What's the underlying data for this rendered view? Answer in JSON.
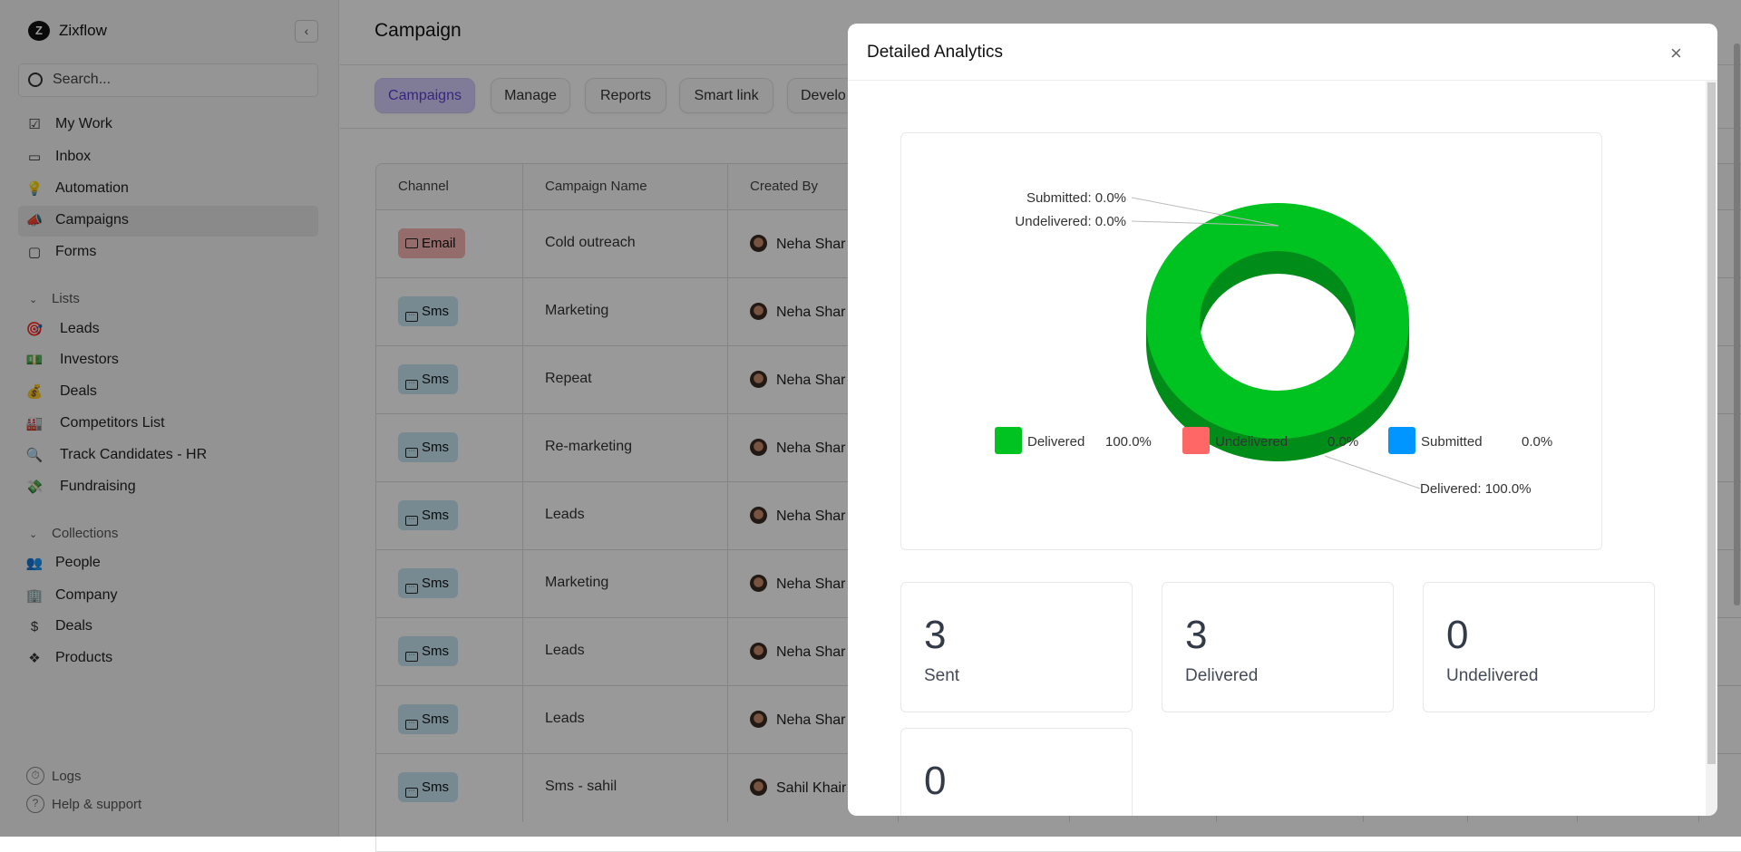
{
  "app": {
    "brand": "Zixflow",
    "logo_letter": "Z"
  },
  "sidebar": {
    "search_placeholder": "Search...",
    "nav": [
      {
        "label": "My Work",
        "icon": "checkbox-icon"
      },
      {
        "label": "Inbox",
        "icon": "inbox-icon"
      },
      {
        "label": "Automation",
        "icon": "lightbulb-icon"
      },
      {
        "label": "Campaigns",
        "icon": "megaphone-icon",
        "active": true
      },
      {
        "label": "Forms",
        "icon": "form-icon"
      }
    ],
    "lists_title": "Lists",
    "lists": [
      {
        "label": "Leads",
        "icon": "🎯"
      },
      {
        "label": "Investors",
        "icon": "💵"
      },
      {
        "label": "Deals",
        "icon": "💰"
      },
      {
        "label": "Competitors List",
        "icon": "🏭"
      },
      {
        "label": "Track Candidates - HR",
        "icon": "🔍"
      },
      {
        "label": "Fundraising",
        "icon": "💸"
      }
    ],
    "collections_title": "Collections",
    "collections": [
      {
        "label": "People",
        "icon": "👥"
      },
      {
        "label": "Company",
        "icon": "🏢"
      },
      {
        "label": "Deals",
        "icon": "$"
      },
      {
        "label": "Products",
        "icon": "❖"
      }
    ],
    "footer": [
      {
        "label": "Logs",
        "icon": "logs-icon"
      },
      {
        "label": "Help & support",
        "icon": "?"
      }
    ]
  },
  "main": {
    "title": "Campaign",
    "tabs": [
      {
        "label": "Campaigns",
        "active": true
      },
      {
        "label": "Manage"
      },
      {
        "label": "Reports"
      },
      {
        "label": "Smart link"
      },
      {
        "label": "Develo"
      }
    ],
    "table": {
      "columns": [
        "Channel",
        "Campaign Name",
        "Created By"
      ],
      "rows": [
        {
          "channel": "Email",
          "name": "Cold outreach",
          "created_by": "Neha Shar"
        },
        {
          "channel": "Sms",
          "name": "Marketing",
          "created_by": "Neha Shar"
        },
        {
          "channel": "Sms",
          "name": "Repeat",
          "created_by": "Neha Shar"
        },
        {
          "channel": "Sms",
          "name": "Re-marketing",
          "created_by": "Neha Shar"
        },
        {
          "channel": "Sms",
          "name": "Leads",
          "created_by": "Neha Shar"
        },
        {
          "channel": "Sms",
          "name": "Marketing",
          "created_by": "Neha Shar"
        },
        {
          "channel": "Sms",
          "name": "Leads",
          "created_by": "Neha Shar"
        },
        {
          "channel": "Sms",
          "name": "Leads",
          "created_by": "Neha Shar"
        },
        {
          "channel": "Sms",
          "name": "Sms - sahil",
          "created_by": "Sahil Khair"
        }
      ]
    }
  },
  "modal": {
    "title": "Detailed Analytics",
    "close": "×",
    "stats": [
      {
        "value": "3",
        "label": "Sent"
      },
      {
        "value": "3",
        "label": "Delivered"
      },
      {
        "value": "0",
        "label": "Undelivered"
      },
      {
        "value": "0",
        "label": ""
      }
    ]
  },
  "chart_data": {
    "type": "pie",
    "variant": "3d-donut",
    "series": [
      {
        "name": "Delivered",
        "value": 100.0,
        "label": "Delivered: 100.0%",
        "legend_value": "100.0%",
        "color": "#00c322"
      },
      {
        "name": "Undelivered",
        "value": 0.0,
        "label": "Undelivered: 0.0%",
        "legend_value": "0.0%",
        "color": "#ff6666"
      },
      {
        "name": "Submitted",
        "value": 0.0,
        "label": "Submitted: 0.0%",
        "legend_value": "0.0%",
        "color": "#0095ff"
      }
    ],
    "legend_position": "bottom"
  }
}
